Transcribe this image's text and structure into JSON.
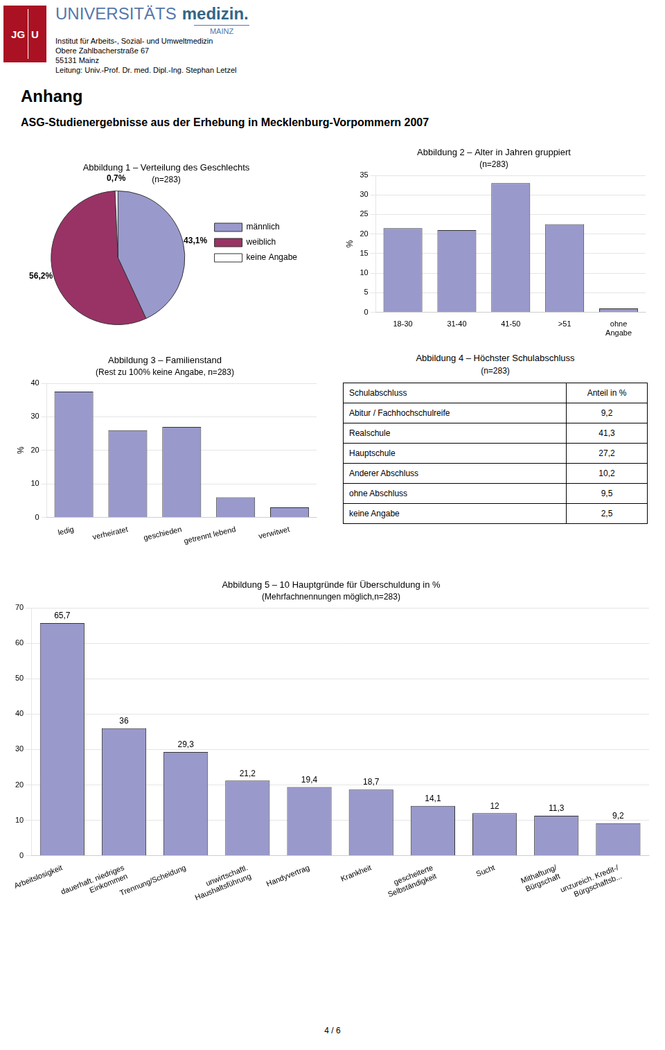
{
  "title": "Anhang",
  "subtitle": "ASG-Studienergebnisse aus der Erhebung in Mecklenburg-Vorpommern 2007",
  "header": [
    "JG",
    "U",
    "UNIVERSITÄTS",
    "medizin.",
    "MAINZ"
  ],
  "annotations": [
    "Institut für Arbeits-, Sozial- und Umweltmedizin",
    "Obere Zahlbacherstraße 67",
    "55131 Mainz",
    "Leitung: Univ.-Prof. Dr. med. Dipl.-Ing. Stephan Letzel"
  ],
  "footer": "4 / 6",
  "chart_data": [
    {
      "type": "pie",
      "title": "Abbildung 1 – Verteilung des Geschlechts",
      "subtitle": "(n=283)",
      "categories": [
        "männlich",
        "weiblich",
        "keine Angabe"
      ],
      "values": [
        43.1,
        56.2,
        0.7
      ],
      "value_labels": [
        "43,1%",
        "56,2%",
        "0,7%"
      ],
      "colors": [
        "#9999cc",
        "#993366",
        "#ffffff"
      ],
      "data_labels": true,
      "legend": "right"
    },
    {
      "type": "bar",
      "title": "Abbildung 2 – Alter in Jahren gruppiert",
      "subtitle": "(n=283)",
      "ylabel": "%",
      "categories": [
        "18-30",
        "31-40",
        "41-50",
        ">51",
        "ohne\nAngabe"
      ],
      "values": [
        21.5,
        21.0,
        33.0,
        22.5,
        1.0
      ],
      "color": "#9999cc",
      "ylim": [
        0,
        35
      ],
      "yticks": [
        0,
        5,
        10,
        15,
        20,
        25,
        30,
        35
      ],
      "grid": true
    },
    {
      "type": "bar",
      "title": "Abbildung 3 – Familienstand",
      "subtitle": "(Rest zu 100% keine Angabe, n=283)",
      "ylabel": "%",
      "categories": [
        "ledig",
        "verheiratet",
        "geschieden",
        "getrennt lebend",
        "verwitwet"
      ],
      "values": [
        37.5,
        26.0,
        27.0,
        6.0,
        3.0
      ],
      "color": "#9999cc",
      "ylim": [
        0,
        40
      ],
      "yticks": [
        0,
        10,
        20,
        30,
        40
      ],
      "grid": true
    },
    {
      "type": "table",
      "title": "Abbildung 4 – Höchster Schulabschluss",
      "subtitle": "(n=283)",
      "columns": [
        "Schulabschluss",
        "Anteil in %"
      ],
      "rows": [
        [
          "Abitur / Fachhochschulreife",
          "9,2"
        ],
        [
          "Realschule",
          "41,3"
        ],
        [
          "Hauptschule",
          "27,2"
        ],
        [
          "Anderer Abschluss",
          "10,2"
        ],
        [
          "ohne Abschluss",
          "9,5"
        ],
        [
          "keine Angabe",
          "2,5"
        ]
      ]
    },
    {
      "type": "bar",
      "title": "Abbildung 5 – 10 Hauptgründe für Überschuldung in %",
      "subtitle": "(Mehrfachnennungen möglich,n=283)",
      "categories": [
        "Arbeitslosigkeit",
        "dauerhaft. niedriges\nEinkommen",
        "Trennung/Scheidung",
        "unwirtschaftl.\nHaushaltsführung",
        "Handyvertrag",
        "Krankheit",
        "gescheiterte\nSelbständigkeit",
        "Sucht",
        "Mithaftung/\nBürgschaft",
        "unzureich. Kredit-/\nBürgschaftsb..."
      ],
      "values": [
        65.7,
        36.0,
        29.3,
        21.2,
        19.4,
        18.7,
        14.1,
        12.0,
        11.3,
        9.2
      ],
      "value_labels": [
        "65,7",
        "36",
        "29,3",
        "21,2",
        "19,4",
        "18,7",
        "14,1",
        "12",
        "11,3",
        "9,2"
      ],
      "data_labels": true,
      "color": "#9999cc",
      "ylim": [
        0,
        70
      ],
      "yticks": [
        0,
        10,
        20,
        30,
        40,
        50,
        60,
        70
      ],
      "grid": true
    }
  ]
}
